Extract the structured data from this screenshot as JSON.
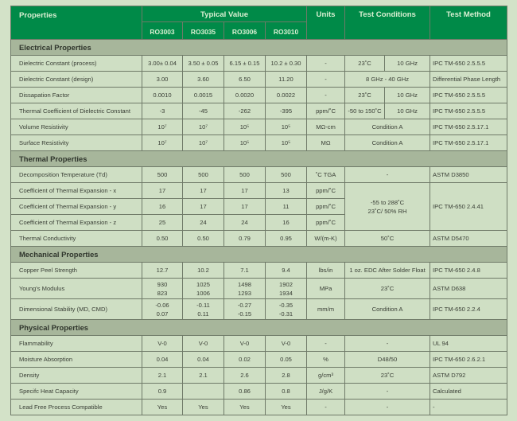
{
  "header": {
    "properties": "Properties",
    "typical_value": "Typical Value",
    "units": "Units",
    "test_conditions": "Test Conditions",
    "test_method": "Test Method",
    "products": [
      "RO3003",
      "RO3035",
      "RO3006",
      "RO3010"
    ]
  },
  "colors": {
    "header_bg": "#008a48",
    "section_bg": "#a7b69b",
    "row_bg": "#cfdfc4",
    "page_bg": "#d3e2c8"
  },
  "sections": [
    {
      "title": "Electrical Properties",
      "rows": [
        {
          "label": "Dielectric Constant (process)",
          "values": [
            "3.00± 0.04",
            "3.50 ± 0.05",
            "6.15 ± 0.15",
            "10.2 ± 0.30"
          ],
          "units": "-",
          "cond": [
            "23˚C",
            "10 GHz"
          ],
          "method": "IPC TM-650 2.5.5.5"
        },
        {
          "label": "Dielectric Constant (design)",
          "values": [
            "3.00",
            "3.60",
            "6.50",
            "11.20"
          ],
          "units": "-",
          "cond": "8 GHz - 40 GHz",
          "method": "Differential Phase Length"
        },
        {
          "label": "Dissapation Factor",
          "values": [
            "0.0010",
            "0.0015",
            "0.0020",
            "0.0022"
          ],
          "units": "-",
          "cond": [
            "23˚C",
            "10 GHz"
          ],
          "method": "IPC TM-650 2.5.5.5"
        },
        {
          "label": "Thermal Coefficient of Dielectric Constant",
          "values": [
            "-3",
            "-45",
            "-262",
            "-395"
          ],
          "units": "ppm/˚C",
          "cond": [
            "-50 to 150˚C",
            "10 GHz"
          ],
          "method": "IPC TM-650 2.5.5.5"
        },
        {
          "label": "Volume Resistivity",
          "values": [
            "10⁷",
            "10⁷",
            "10⁵",
            "10⁵"
          ],
          "units": "MΩ-cm",
          "cond": "Condition A",
          "method": "IPC TM-650 2.5.17.1"
        },
        {
          "label": "Surface Resistivity",
          "values": [
            "10⁷",
            "10⁷",
            "10⁵",
            "10⁵"
          ],
          "units": "MΩ",
          "cond": "Condition A",
          "method": "IPC TM-650 2.5.17.1"
        }
      ]
    },
    {
      "title": "Thermal Properties",
      "rows": [
        {
          "label": "Decomposition Temperature (Td)",
          "values": [
            "500",
            "500",
            "500",
            "500"
          ],
          "units": "˚C TGA",
          "cond": "-",
          "method": "ASTM D3850"
        },
        {
          "label": "Coefficient of Thermal Expansion - x",
          "values": [
            "17",
            "17",
            "17",
            "13"
          ],
          "units": "ppm/˚C",
          "cond": "-55 to 288˚C\n23˚C/ 50% RH",
          "method": "IPC TM-650 2.4.41"
        },
        {
          "label": "Coefficient of Thermal Expansion - y",
          "values": [
            "16",
            "17",
            "17",
            "11"
          ],
          "units": "ppm/˚C"
        },
        {
          "label": "Coefficient of Thermal Expansion - z",
          "values": [
            "25",
            "24",
            "24",
            "16"
          ],
          "units": "ppm/˚C"
        },
        {
          "label": "Thermal Conductivity",
          "values": [
            "0.50",
            "0.50",
            "0.79",
            "0.95"
          ],
          "units": "W/(m-K)",
          "cond": "50˚C",
          "method": "ASTM D5470"
        }
      ]
    },
    {
      "title": "Mechanical Properties",
      "rows": [
        {
          "label": "Copper Peel Strength",
          "values": [
            "12.7",
            "10.2",
            "7.1",
            "9.4"
          ],
          "units": "lbs/in",
          "cond": "1 oz. EDC After Solder  Float",
          "method": "IPC TM-650 2.4.8"
        },
        {
          "label": "Young's Modulus",
          "values": [
            "930\n823",
            "1025\n1006",
            "1498\n1293",
            "1902\n1934"
          ],
          "units": "MPa",
          "cond": "23˚C",
          "method": "ASTM D638"
        },
        {
          "label": "Dimensional Stability (MD, CMD)",
          "values": [
            "-0.06\n0.07",
            "-0.11\n0.11",
            "-0.27\n-0.15",
            "-0.35\n-0.31"
          ],
          "units": "mm/m",
          "cond": "Condition A",
          "method": "IPC TM-650 2.2.4"
        }
      ]
    },
    {
      "title": "Physical Properties",
      "rows": [
        {
          "label": "Flammability",
          "values": [
            "V-0",
            "V-0",
            "V-0",
            "V-0"
          ],
          "units": "-",
          "cond": "-",
          "method": "UL 94"
        },
        {
          "label": "Moisture Absorption",
          "values": [
            "0.04",
            "0.04",
            "0.02",
            "0.05"
          ],
          "units": "%",
          "cond": "D48/50",
          "method": "IPC TM-650 2.6.2.1"
        },
        {
          "label": "Density",
          "values": [
            "2.1",
            "2.1",
            "2.6",
            "2.8"
          ],
          "units": "g/cm³",
          "cond": "23˚C",
          "method": "ASTM D792"
        },
        {
          "label": "Specifc Heat Capacity",
          "values": [
            "0.9",
            "",
            "0.86",
            "0.8"
          ],
          "units": "J/g/K",
          "cond": "-",
          "method": "Calculated"
        },
        {
          "label": "Lead Free Process Compatible",
          "values": [
            "Yes",
            "Yes",
            "Yes",
            "Yes"
          ],
          "units": "-",
          "cond": "-",
          "method": "-"
        }
      ]
    }
  ]
}
